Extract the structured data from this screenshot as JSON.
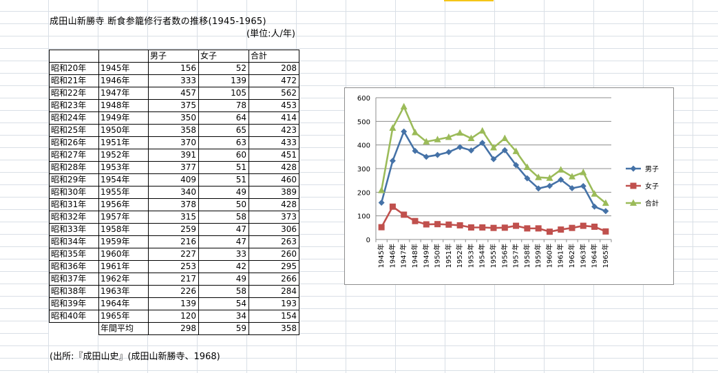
{
  "sheet": {
    "title": "成田山新勝寺 断食参籠修行者数の推移(1945-1965)",
    "unit": "(単位:人/年)",
    "source": "(出所:『成田山史』(成田山新勝寺、1968)"
  },
  "table": {
    "headers": [
      "",
      "",
      "男子",
      "女子",
      "合計"
    ],
    "rows": [
      {
        "era": "昭和20年",
        "year": "1945年",
        "male": "156",
        "female": "52",
        "total": "208"
      },
      {
        "era": "昭和21年",
        "year": "1946年",
        "male": "333",
        "female": "139",
        "total": "472"
      },
      {
        "era": "昭和22年",
        "year": "1947年",
        "male": "457",
        "female": "105",
        "total": "562"
      },
      {
        "era": "昭和23年",
        "year": "1948年",
        "male": "375",
        "female": "78",
        "total": "453"
      },
      {
        "era": "昭和24年",
        "year": "1949年",
        "male": "350",
        "female": "64",
        "total": "414"
      },
      {
        "era": "昭和25年",
        "year": "1950年",
        "male": "358",
        "female": "65",
        "total": "423"
      },
      {
        "era": "昭和26年",
        "year": "1951年",
        "male": "370",
        "female": "63",
        "total": "433"
      },
      {
        "era": "昭和27年",
        "year": "1952年",
        "male": "391",
        "female": "60",
        "total": "451"
      },
      {
        "era": "昭和28年",
        "year": "1953年",
        "male": "377",
        "female": "51",
        "total": "428"
      },
      {
        "era": "昭和29年",
        "year": "1954年",
        "male": "409",
        "female": "51",
        "total": "460"
      },
      {
        "era": "昭和30年",
        "year": "1955年",
        "male": "340",
        "female": "49",
        "total": "389"
      },
      {
        "era": "昭和31年",
        "year": "1956年",
        "male": "378",
        "female": "50",
        "total": "428"
      },
      {
        "era": "昭和32年",
        "year": "1957年",
        "male": "315",
        "female": "58",
        "total": "373"
      },
      {
        "era": "昭和33年",
        "year": "1958年",
        "male": "259",
        "female": "47",
        "total": "306"
      },
      {
        "era": "昭和34年",
        "year": "1959年",
        "male": "216",
        "female": "47",
        "total": "263"
      },
      {
        "era": "昭和35年",
        "year": "1960年",
        "male": "227",
        "female": "33",
        "total": "260"
      },
      {
        "era": "昭和36年",
        "year": "1961年",
        "male": "253",
        "female": "42",
        "total": "295"
      },
      {
        "era": "昭和37年",
        "year": "1962年",
        "male": "217",
        "female": "49",
        "total": "266"
      },
      {
        "era": "昭和38年",
        "year": "1963年",
        "male": "226",
        "female": "58",
        "total": "284"
      },
      {
        "era": "昭和39年",
        "year": "1964年",
        "male": "139",
        "female": "54",
        "total": "193"
      },
      {
        "era": "昭和40年",
        "year": "1965年",
        "male": "120",
        "female": "34",
        "total": "154"
      }
    ],
    "average": {
      "label": "年間平均",
      "male": "298",
      "female": "59",
      "total": "358"
    }
  },
  "chart_data": {
    "type": "line",
    "categories": [
      "1945年",
      "1946年",
      "1947年",
      "1948年",
      "1949年",
      "1950年",
      "1951年",
      "1952年",
      "1953年",
      "1954年",
      "1955年",
      "1956年",
      "1957年",
      "1958年",
      "1959年",
      "1960年",
      "1961年",
      "1962年",
      "1963年",
      "1964年",
      "1965年"
    ],
    "series": [
      {
        "name": "男子",
        "color": "#4572A7",
        "marker": "diamond",
        "values": [
          156,
          333,
          457,
          375,
          350,
          358,
          370,
          391,
          377,
          409,
          340,
          378,
          315,
          259,
          216,
          227,
          253,
          217,
          226,
          139,
          120
        ]
      },
      {
        "name": "女子",
        "color": "#C0504D",
        "marker": "square",
        "values": [
          52,
          139,
          105,
          78,
          64,
          65,
          63,
          60,
          51,
          51,
          49,
          50,
          58,
          47,
          47,
          33,
          42,
          49,
          58,
          54,
          34
        ]
      },
      {
        "name": "合計",
        "color": "#9BBB59",
        "marker": "triangle",
        "values": [
          208,
          472,
          562,
          453,
          414,
          423,
          433,
          451,
          428,
          460,
          389,
          428,
          373,
          306,
          263,
          260,
          295,
          266,
          284,
          193,
          154
        ]
      }
    ],
    "title": "",
    "xlabel": "",
    "ylabel": "",
    "ylim": [
      0,
      600
    ],
    "yticks": [
      "0",
      "100",
      "200",
      "300",
      "400",
      "500",
      "600"
    ],
    "grid": true,
    "legend": "right"
  }
}
